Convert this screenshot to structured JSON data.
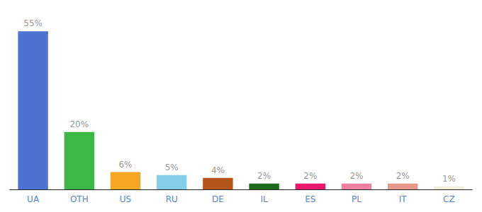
{
  "chart_data": {
    "type": "bar",
    "categories": [
      "UA",
      "OTH",
      "US",
      "RU",
      "DE",
      "IL",
      "ES",
      "PL",
      "IT",
      "CZ"
    ],
    "values": [
      55,
      20,
      6,
      5,
      4,
      2,
      2,
      2,
      2,
      1
    ],
    "value_labels": [
      "55%",
      "20%",
      "6%",
      "5%",
      "4%",
      "2%",
      "2%",
      "2%",
      "2%",
      "1%"
    ],
    "data_labels": true,
    "colors": [
      "#4d72d4",
      "#3cb847",
      "#f5a623",
      "#85cce8",
      "#b5551a",
      "#1a6b1a",
      "#e8186d",
      "#f080a0",
      "#e89888",
      "#f0edd8"
    ],
    "ylim": [
      0,
      60
    ],
    "tick_labels": "x",
    "grid": false
  }
}
